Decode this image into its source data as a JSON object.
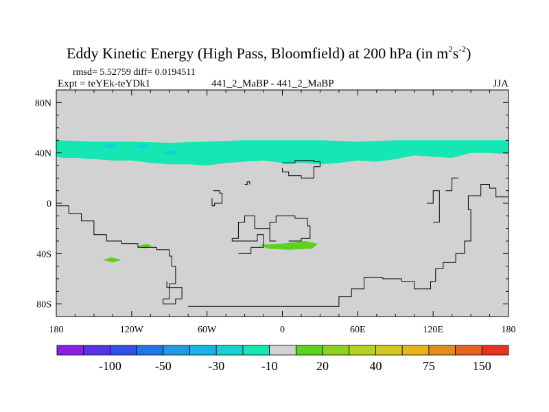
{
  "chart_data": {
    "type": "heatmap",
    "title_main": "Eddy Kinetic Energy (High Pass, Bloomfield) at 200 hPa (in m",
    "title_unit_sup1": "2",
    "title_unit_s": "s",
    "title_unit_sup2": "-2",
    "title_unit_close": ")",
    "subtitle_stats": "rmsd= 5.52759 diff= 0.0194511",
    "subtitle_left": "Expt = teYEk-teYDk1",
    "subtitle_center": "441_2_MaBP - 441_2_MaBP",
    "subtitle_right": "JJA",
    "stats": {
      "rmsd": 5.52759,
      "diff": 0.0194511
    },
    "x_range": [
      -180,
      180
    ],
    "y_range": [
      -90,
      90
    ],
    "x_ticks": [
      {
        "value": -180,
        "label": "180"
      },
      {
        "value": -120,
        "label": "120W"
      },
      {
        "value": -60,
        "label": "60W"
      },
      {
        "value": 0,
        "label": "0"
      },
      {
        "value": 60,
        "label": "60E"
      },
      {
        "value": 120,
        "label": "120E"
      },
      {
        "value": 180,
        "label": "180"
      }
    ],
    "y_ticks": [
      {
        "value": 80,
        "label": "80N"
      },
      {
        "value": 40,
        "label": "40N"
      },
      {
        "value": 0,
        "label": "0"
      },
      {
        "value": -40,
        "label": "40S"
      },
      {
        "value": -80,
        "label": "80S"
      }
    ],
    "background_color": "#d2d2d2",
    "colorbar": {
      "colors": [
        "#8c1ee6",
        "#5a32e6",
        "#3250e6",
        "#1e78e6",
        "#1e9be6",
        "#14b4e6",
        "#14d2d2",
        "#14e6b4",
        "#d2d2d2",
        "#5ad21e",
        "#8cd21e",
        "#b4d21e",
        "#d2c81e",
        "#e6b41e",
        "#e68c1e",
        "#e6641e",
        "#e6321e"
      ],
      "labels": [
        "-100",
        "-50",
        "-30",
        "-10",
        "20",
        "40",
        "75",
        "150"
      ]
    },
    "filled_regions": [
      {
        "name": "midlatitude-band-negative",
        "level": "-10",
        "color": "#14e6b4",
        "upper_edge": [
          [
            -180,
            50
          ],
          [
            -150,
            49
          ],
          [
            -120,
            49
          ],
          [
            -90,
            48
          ],
          [
            -60,
            49
          ],
          [
            -30,
            50
          ],
          [
            0,
            50
          ],
          [
            30,
            50
          ],
          [
            60,
            49
          ],
          [
            90,
            50
          ],
          [
            120,
            50
          ],
          [
            150,
            50
          ],
          [
            180,
            50
          ]
        ],
        "lower_edge": [
          [
            180,
            39
          ],
          [
            165,
            40
          ],
          [
            150,
            40
          ],
          [
            135,
            36
          ],
          [
            120,
            37
          ],
          [
            105,
            38
          ],
          [
            90,
            35
          ],
          [
            75,
            33
          ],
          [
            60,
            34
          ],
          [
            45,
            32
          ],
          [
            30,
            31
          ],
          [
            15,
            32
          ],
          [
            0,
            32
          ],
          [
            -15,
            34
          ],
          [
            -30,
            33
          ],
          [
            -45,
            32
          ],
          [
            -60,
            30
          ],
          [
            -75,
            31
          ],
          [
            -90,
            31
          ],
          [
            -105,
            32
          ],
          [
            -120,
            34
          ],
          [
            -135,
            34
          ],
          [
            -150,
            35
          ],
          [
            -165,
            36
          ],
          [
            -175,
            36
          ],
          [
            -180,
            37
          ]
        ]
      },
      {
        "name": "core-negative-1",
        "level": "-30",
        "color": "#14d2d2",
        "points": [
          [
            -144,
            45
          ],
          [
            -138,
            47
          ],
          [
            -130,
            46
          ],
          [
            -136,
            44
          ]
        ]
      },
      {
        "name": "core-negative-2",
        "level": "-30",
        "color": "#14d2d2",
        "points": [
          [
            -118,
            46
          ],
          [
            -110,
            47
          ],
          [
            -104,
            46
          ],
          [
            -112,
            44
          ]
        ]
      },
      {
        "name": "core-negative-3",
        "level": "-30",
        "color": "#14d2d2",
        "points": [
          [
            -96,
            40
          ],
          [
            -90,
            42
          ],
          [
            -82,
            41
          ],
          [
            -88,
            38
          ]
        ]
      },
      {
        "name": "south-atlantic-positive",
        "level": "20",
        "color": "#5ad21e",
        "points": [
          [
            -18,
            -33
          ],
          [
            0,
            -32
          ],
          [
            18,
            -30
          ],
          [
            28,
            -32
          ],
          [
            24,
            -36
          ],
          [
            5,
            -37
          ],
          [
            -12,
            -36
          ]
        ]
      },
      {
        "name": "south-pacific-positive-1",
        "level": "20",
        "color": "#5ad21e",
        "points": [
          [
            -115,
            -34
          ],
          [
            -108,
            -32
          ],
          [
            -104,
            -34
          ],
          [
            -110,
            -36
          ]
        ]
      },
      {
        "name": "south-pacific-positive-2",
        "level": "20",
        "color": "#5ad21e",
        "points": [
          [
            -143,
            -45
          ],
          [
            -136,
            -43
          ],
          [
            -128,
            -45
          ],
          [
            -135,
            -47
          ]
        ]
      }
    ],
    "coastlines": [
      {
        "name": "south-america",
        "points": [
          [
            -180,
            -2
          ],
          [
            -170,
            -8
          ],
          [
            -160,
            -14
          ],
          [
            -150,
            -25
          ],
          [
            -140,
            -30
          ],
          [
            -128,
            -32
          ],
          [
            -115,
            -35
          ],
          [
            -100,
            -37
          ],
          [
            -90,
            -42
          ],
          [
            -88,
            -50
          ],
          [
            -85,
            -58
          ],
          [
            -85,
            -64
          ],
          [
            -90,
            -70
          ],
          [
            -90,
            -76
          ],
          [
            -95,
            -77
          ],
          [
            -95,
            -80
          ],
          [
            -85,
            -80
          ],
          [
            -85,
            -76
          ],
          [
            -80,
            -74
          ],
          [
            -80,
            -67
          ],
          [
            -88,
            -67
          ],
          [
            -92,
            -62
          ]
        ]
      },
      {
        "name": "antarctica",
        "points": [
          [
            -75,
            -82
          ],
          [
            -5,
            -82
          ],
          [
            30,
            -82
          ],
          [
            45,
            -74
          ],
          [
            55,
            -68
          ],
          [
            65,
            -59
          ],
          [
            80,
            -60
          ],
          [
            95,
            -62
          ],
          [
            105,
            -68
          ],
          [
            118,
            -68
          ],
          [
            118,
            -62
          ],
          [
            122,
            -52
          ],
          [
            128,
            -47
          ],
          [
            138,
            -40
          ],
          [
            145,
            -30
          ],
          [
            150,
            -20
          ],
          [
            150,
            -5
          ],
          [
            148,
            6
          ],
          [
            158,
            15
          ],
          [
            165,
            12
          ],
          [
            170,
            5
          ],
          [
            180,
            -2
          ]
        ]
      },
      {
        "name": "africa",
        "points": [
          [
            -55,
            10
          ],
          [
            -50,
            8
          ],
          [
            -48,
            0
          ],
          [
            -54,
            -2
          ],
          [
            -56,
            4
          ]
        ]
      },
      {
        "name": "madagascar",
        "points": [
          [
            -30,
            15
          ],
          [
            -28,
            17
          ],
          [
            -26,
            15
          ]
        ]
      },
      {
        "name": "indonesia-1",
        "points": [
          [
            115,
            0
          ],
          [
            120,
            10
          ],
          [
            125,
            10
          ],
          [
            125,
            -15
          ],
          [
            120,
            -15
          ]
        ]
      },
      {
        "name": "indonesia-2",
        "points": [
          [
            130,
            10
          ],
          [
            135,
            20
          ],
          [
            140,
            20
          ],
          [
            135,
            10
          ]
        ]
      },
      {
        "name": "australia",
        "points": [
          [
            0,
            32
          ],
          [
            10,
            34
          ],
          [
            25,
            33
          ],
          [
            30,
            29
          ],
          [
            25,
            20
          ],
          [
            20,
            20
          ],
          [
            15,
            22
          ],
          [
            8,
            22
          ],
          [
            5,
            25
          ],
          [
            0,
            28
          ]
        ]
      },
      {
        "name": "middle-east",
        "points": [
          [
            -10,
            -20
          ],
          [
            -18,
            -20
          ],
          [
            -22,
            -10
          ],
          [
            -30,
            -15
          ],
          [
            -35,
            -28
          ],
          [
            -40,
            -30
          ],
          [
            -30,
            -30
          ],
          [
            -20,
            -25
          ],
          [
            -15,
            -35
          ],
          [
            -25,
            -40
          ],
          [
            -35,
            -40
          ]
        ]
      },
      {
        "name": "southeast-asia",
        "points": [
          [
            -5,
            -30
          ],
          [
            -10,
            -15
          ],
          [
            -5,
            -10
          ],
          [
            10,
            -12
          ],
          [
            20,
            -18
          ],
          [
            22,
            -28
          ],
          [
            15,
            -30
          ],
          [
            5,
            -30
          ]
        ]
      }
    ]
  }
}
